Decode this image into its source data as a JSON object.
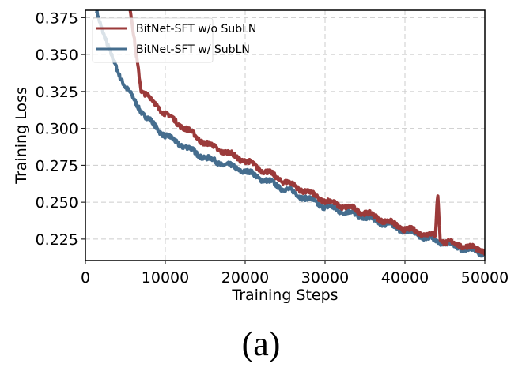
{
  "chart_data": {
    "type": "line",
    "xlabel": "Training Steps",
    "ylabel": "Training Loss",
    "xlim": [
      0,
      50000
    ],
    "ylim": [
      0.2105,
      0.38
    ],
    "xticks": [
      0,
      10000,
      20000,
      30000,
      40000,
      50000
    ],
    "yticks": [
      0.225,
      0.25,
      0.275,
      0.3,
      0.325,
      0.35,
      0.375
    ],
    "ytick_labels": [
      "0.225",
      "0.250",
      "0.275",
      "0.300",
      "0.325",
      "0.350",
      "0.375"
    ],
    "grid": true,
    "legend": "top-left",
    "series": [
      {
        "name": "BitNet-SFT w/o SubLN",
        "color": "#9b3a3a",
        "x": [
          5600,
          7000,
          10000,
          15000,
          20000,
          25000,
          30000,
          35000,
          40000,
          43800,
          44100,
          44400,
          45000,
          47000,
          50000
        ],
        "y": [
          0.38,
          0.326,
          0.31,
          0.29,
          0.278,
          0.264,
          0.251,
          0.243,
          0.232,
          0.227,
          0.257,
          0.226,
          0.223,
          0.221,
          0.217
        ]
      },
      {
        "name": "BitNet-SFT w/ SubLN",
        "color": "#456d8e",
        "x": [
          1400,
          3000,
          5000,
          7500,
          10000,
          15000,
          20000,
          25000,
          30000,
          35000,
          40000,
          45000,
          50000
        ],
        "y": [
          0.38,
          0.352,
          0.328,
          0.308,
          0.295,
          0.28,
          0.271,
          0.259,
          0.247,
          0.24,
          0.231,
          0.222,
          0.2155
        ]
      }
    ]
  },
  "caption": "(a)"
}
